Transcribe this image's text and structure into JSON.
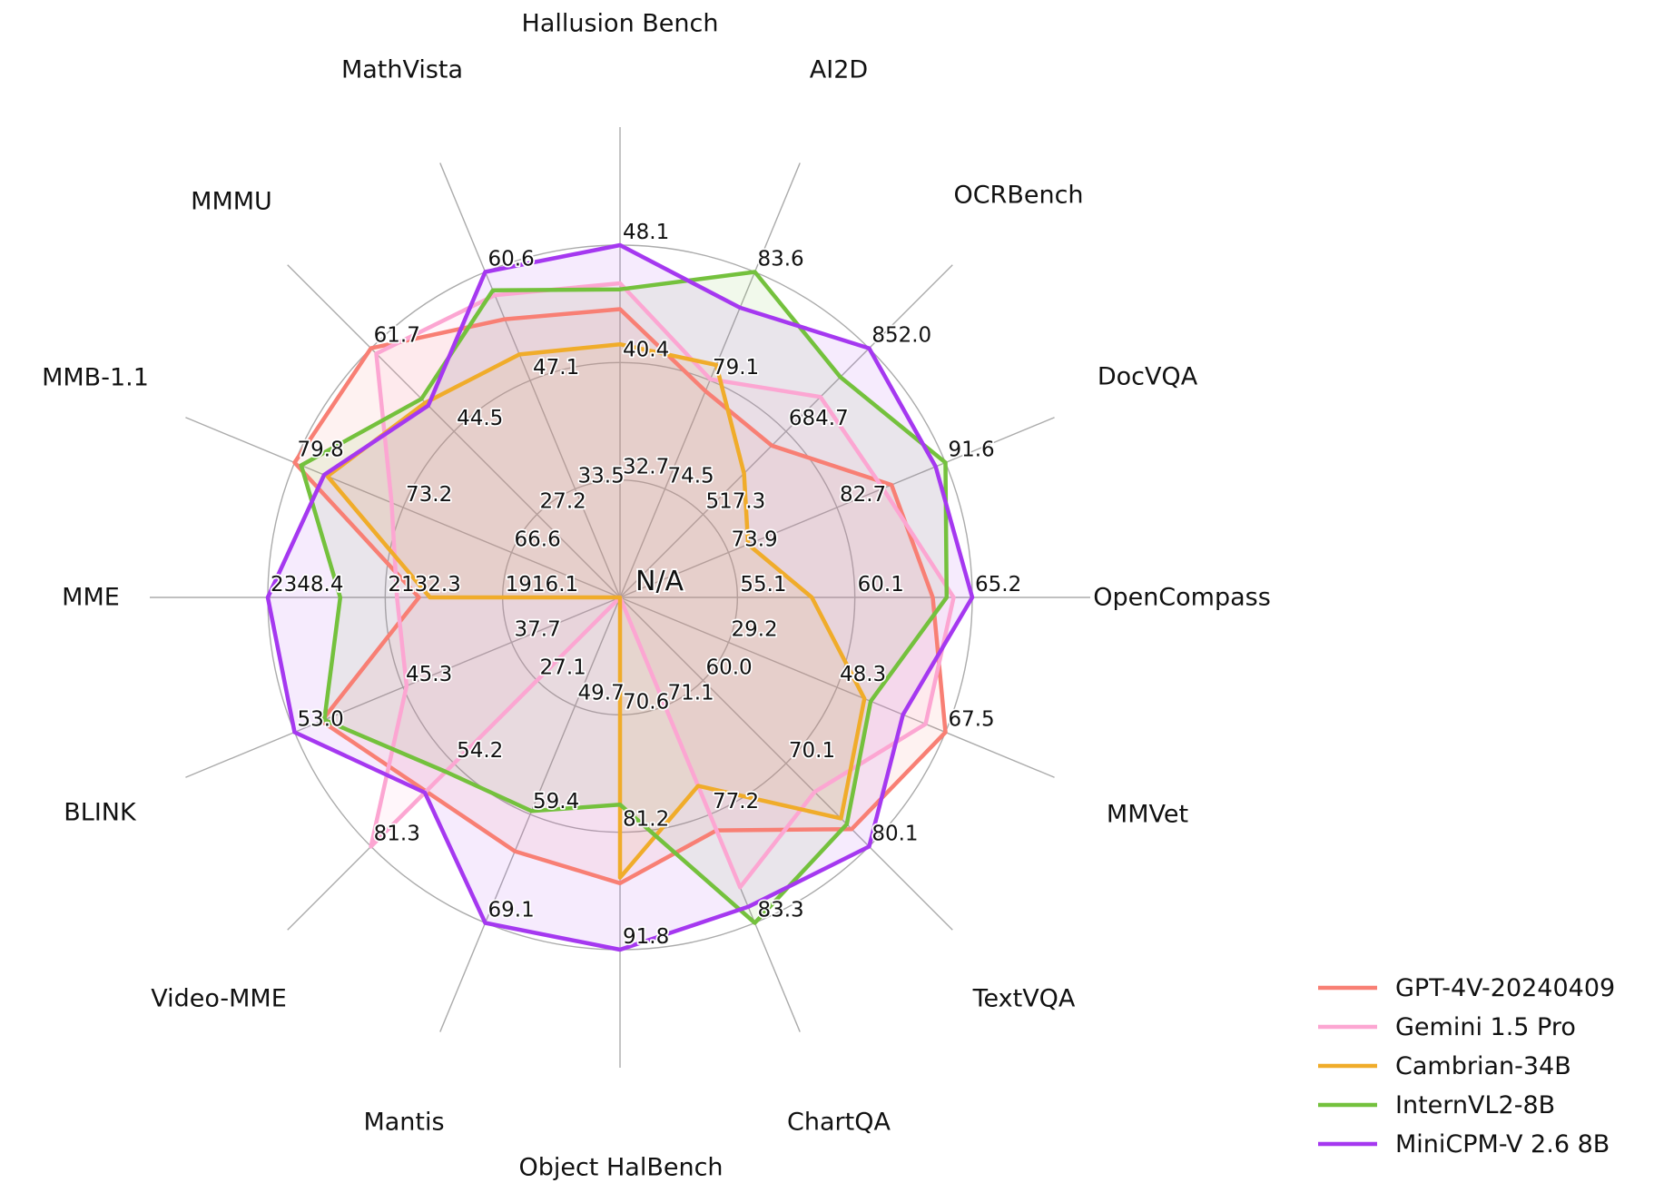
{
  "chart_data": {
    "type": "radar",
    "title": "",
    "center_label": "N/A",
    "grid": true,
    "legend_position": "bottom-right",
    "grid_color": "#ABABAB",
    "text_color": "#111111",
    "ring_fractions": [
      0.3333,
      0.6667,
      1.0
    ],
    "axes": [
      {
        "label": "Hallusion Bench",
        "rings": [
          32.7,
          40.4,
          48.1
        ]
      },
      {
        "label": "AI2D",
        "rings": [
          74.5,
          79.1,
          83.6
        ]
      },
      {
        "label": "OCRBench",
        "rings": [
          517.3,
          684.7,
          852.0
        ]
      },
      {
        "label": "DocVQA",
        "rings": [
          73.9,
          82.7,
          91.6
        ]
      },
      {
        "label": "OpenCompass",
        "rings": [
          55.1,
          60.1,
          65.2
        ]
      },
      {
        "label": "MMVet",
        "rings": [
          29.2,
          48.3,
          67.5
        ]
      },
      {
        "label": "TextVQA",
        "rings": [
          60.0,
          70.1,
          80.1
        ]
      },
      {
        "label": "ChartQA",
        "rings": [
          71.1,
          77.2,
          83.3
        ]
      },
      {
        "label": "Object HalBench",
        "rings": [
          70.6,
          81.2,
          91.8
        ]
      },
      {
        "label": "Mantis",
        "rings": [
          49.7,
          59.4,
          69.1
        ]
      },
      {
        "label": "Video-MME",
        "rings": [
          27.1,
          54.2,
          81.3
        ]
      },
      {
        "label": "BLINK",
        "rings": [
          37.7,
          45.3,
          53.0
        ]
      },
      {
        "label": "MME",
        "rings": [
          1916.1,
          2132.3,
          2348.4
        ]
      },
      {
        "label": "MMB-1.1",
        "rings": [
          66.6,
          73.2,
          79.8
        ]
      },
      {
        "label": "MMMU",
        "rings": [
          27.2,
          44.5,
          61.7
        ]
      },
      {
        "label": "MathVista",
        "rings": [
          33.5,
          47.1,
          60.6
        ]
      }
    ],
    "series": [
      {
        "name": "GPT-4V-20240409",
        "color": "#F87F74",
        "values": [
          43.9,
          78.6,
          656.0,
          87.2,
          63.5,
          67.5,
          78.0,
          78.1,
          85.8,
          62.7,
          63.3,
          51.1,
          2070.2,
          79.8,
          61.7,
          54.7
        ]
      },
      {
        "name": "Gemini 1.5 Pro",
        "color": "#FCA6D2",
        "values": [
          45.6,
          79.1,
          754.0,
          86.5,
          64.4,
          64.0,
          73.5,
          81.3,
          null,
          null,
          81.3,
          45.1,
          2110.6,
          73.9,
          60.6,
          57.7
        ]
      },
      {
        "name": "Cambrian-34B",
        "color": "#F0AC2A",
        "values": [
          41.6,
          79.7,
          600.0,
          75.5,
          58.3,
          53.2,
          76.7,
          75.6,
          85.3,
          null,
          null,
          null,
          2049.9,
          77.8,
          50.4,
          50.3
        ]
      },
      {
        "name": "InternVL2-8B",
        "color": "#74C13D",
        "values": [
          45.2,
          83.6,
          794.0,
          91.6,
          64.1,
          54.3,
          77.4,
          83.3,
          78.7,
          59.1,
          56.9,
          50.9,
          2215.1,
          79.4,
          51.2,
          58.3
        ]
      },
      {
        "name": "MiniCPM-V 2.6 8B",
        "color": "#A538F0",
        "values": [
          48.1,
          82.1,
          852.0,
          90.8,
          65.2,
          60.0,
          80.1,
          82.4,
          91.8,
          69.1,
          63.7,
          53.0,
          2348.4,
          78.0,
          49.8,
          60.6
        ]
      }
    ]
  }
}
